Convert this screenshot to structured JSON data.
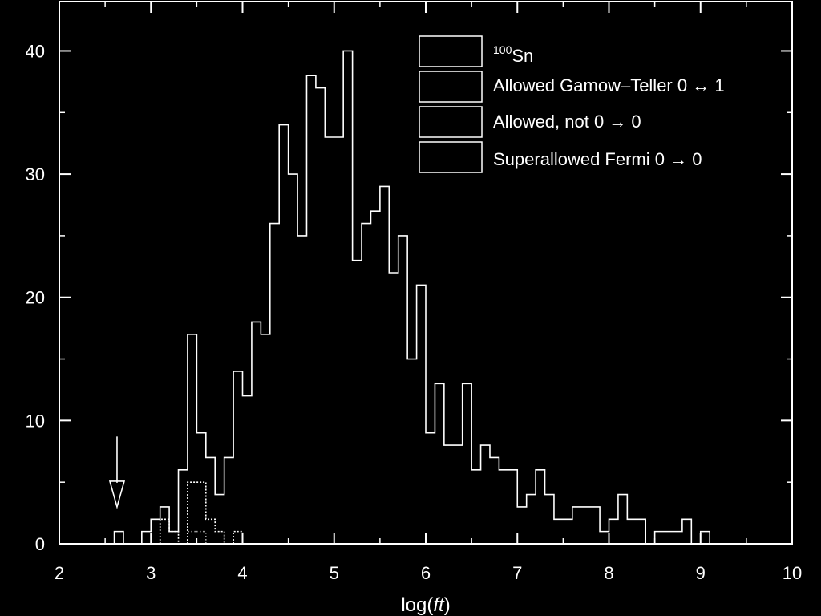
{
  "chart_data": {
    "type": "histogram",
    "title": "",
    "xlabel_prefix": "log(",
    "xlabel_italic": "ft",
    "xlabel_suffix": ")",
    "ylabel": "",
    "xlim": [
      2,
      10
    ],
    "ylim": [
      0,
      44
    ],
    "x_ticks": [
      "2",
      "3",
      "4",
      "5",
      "6",
      "7",
      "8",
      "9",
      "10"
    ],
    "y_ticks": [
      "0",
      "10",
      "20",
      "30",
      "40"
    ],
    "grid": false,
    "legend_position": "top-right",
    "legend": [
      {
        "name_sup": "100",
        "name": "Sn"
      },
      {
        "name": "Allowed Gamow–Teller 0 ↔ 1"
      },
      {
        "name": "Allowed, not 0 → 0"
      },
      {
        "name": "Superallowed Fermi 0 → 0"
      }
    ],
    "series": [
      {
        "name": "Allowed Gamow–Teller 0 ↔ 1",
        "bin_width": 0.1,
        "bins": [
          [
            2.6,
            1
          ],
          [
            2.9,
            1
          ],
          [
            3.0,
            2
          ],
          [
            3.1,
            3
          ],
          [
            3.2,
            1
          ],
          [
            3.3,
            6
          ],
          [
            3.4,
            17
          ],
          [
            3.5,
            9
          ],
          [
            3.6,
            7
          ],
          [
            3.7,
            4
          ],
          [
            3.8,
            7
          ],
          [
            3.9,
            14
          ],
          [
            4.0,
            12
          ],
          [
            4.1,
            18
          ],
          [
            4.2,
            17
          ],
          [
            4.3,
            26
          ],
          [
            4.4,
            34
          ],
          [
            4.5,
            30
          ],
          [
            4.6,
            25
          ],
          [
            4.7,
            38
          ],
          [
            4.8,
            37
          ],
          [
            4.9,
            33
          ],
          [
            5.0,
            33
          ],
          [
            5.1,
            40
          ],
          [
            5.2,
            23
          ],
          [
            5.3,
            26
          ],
          [
            5.4,
            27
          ],
          [
            5.5,
            29
          ],
          [
            5.6,
            22
          ],
          [
            5.7,
            25
          ],
          [
            5.8,
            15
          ],
          [
            5.9,
            21
          ],
          [
            6.0,
            9
          ],
          [
            6.1,
            13
          ],
          [
            6.2,
            8
          ],
          [
            6.3,
            8
          ],
          [
            6.4,
            13
          ],
          [
            6.5,
            6
          ],
          [
            6.6,
            8
          ],
          [
            6.7,
            7
          ],
          [
            6.8,
            6
          ],
          [
            6.9,
            6
          ],
          [
            7.0,
            3
          ],
          [
            7.1,
            4
          ],
          [
            7.2,
            6
          ],
          [
            7.3,
            4
          ],
          [
            7.4,
            2
          ],
          [
            7.5,
            2
          ],
          [
            7.6,
            3
          ],
          [
            7.7,
            3
          ],
          [
            7.8,
            3
          ],
          [
            7.9,
            1
          ],
          [
            8.0,
            2
          ],
          [
            8.1,
            4
          ],
          [
            8.2,
            2
          ],
          [
            8.3,
            2
          ],
          [
            8.4,
            0
          ],
          [
            8.5,
            1
          ],
          [
            8.6,
            1
          ],
          [
            8.7,
            1
          ],
          [
            8.8,
            2
          ],
          [
            8.9,
            0
          ],
          [
            9.0,
            1
          ]
        ]
      },
      {
        "name": "Allowed, not 0 → 0",
        "bin_width": 0.1,
        "bins": [
          [
            3.1,
            2
          ],
          [
            3.2,
            1
          ],
          [
            3.4,
            5
          ],
          [
            3.5,
            5
          ],
          [
            3.6,
            2
          ],
          [
            3.7,
            1
          ],
          [
            3.9,
            1
          ]
        ]
      },
      {
        "name": "Superallowed Fermi 0 → 0",
        "bin_width": 0.1,
        "bins": [
          [
            3.4,
            1
          ],
          [
            3.5,
            1
          ]
        ]
      }
    ],
    "annotation": {
      "type": "arrow-down",
      "x": 2.63,
      "y_from": 8.7,
      "y_to": 3.0,
      "label": "100Sn"
    }
  }
}
